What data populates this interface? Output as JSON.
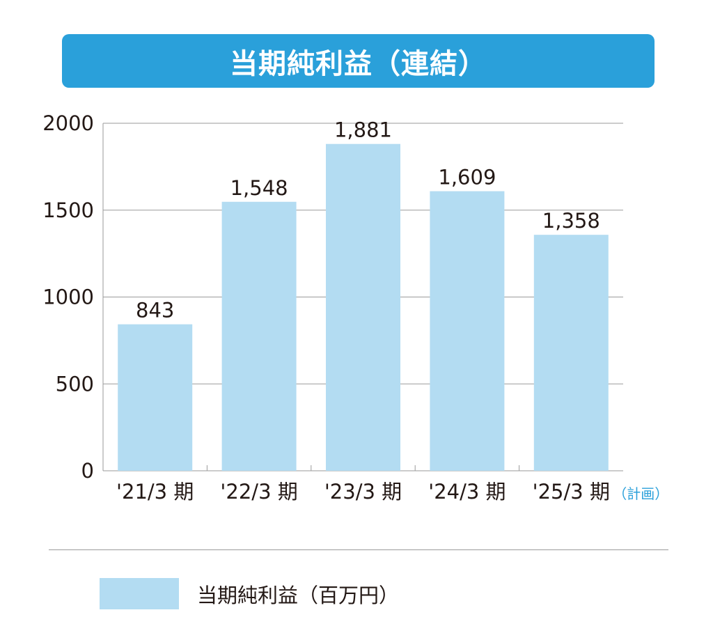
{
  "colors": {
    "bar": "#b3dcf2",
    "banner": "#2aa0da",
    "note": "#2aa0da",
    "grid": "#9a9a9a",
    "text": "#231815"
  },
  "chart_data": {
    "type": "bar",
    "title": "当期純利益（連結）",
    "categories": [
      "'21/3 期",
      "'22/3 期",
      "'23/3 期",
      "'24/3 期",
      "'25/3 期"
    ],
    "category_note": {
      "index": 4,
      "text": "（計画）"
    },
    "series": [
      {
        "name": "当期純利益（百万円）",
        "values": [
          843,
          1548,
          1881,
          1609,
          1358
        ]
      }
    ],
    "value_labels": [
      "843",
      "1,548",
      "1,881",
      "1,609",
      "1,358"
    ],
    "yticks": [
      0,
      500,
      1000,
      1500,
      2000
    ],
    "ylim": [
      0,
      2000
    ],
    "grid": true,
    "legend": "bottom-left",
    "xlabel": "",
    "ylabel": ""
  }
}
